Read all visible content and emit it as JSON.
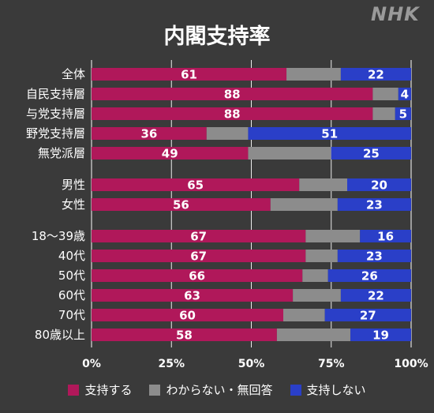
{
  "header": {
    "title": "内閣支持率",
    "logo": "NHK"
  },
  "colors": {
    "support": "#b0185a",
    "unknown": "#8c8c8c",
    "oppose": "#2a3fc8"
  },
  "chart_data": {
    "type": "bar",
    "stacked": true,
    "orientation": "horizontal",
    "title": "内閣支持率",
    "categories": [
      "全体",
      "自民支持層",
      "与党支持層",
      "野党支持層",
      "無党派層",
      "男性",
      "女性",
      "18～39歳",
      "40代",
      "50代",
      "60代",
      "70代",
      "80歳以上"
    ],
    "groups": [
      [
        0,
        1,
        2,
        3,
        4
      ],
      [
        5,
        6
      ],
      [
        7,
        8,
        9,
        10,
        11,
        12
      ]
    ],
    "series": [
      {
        "name": "支持する",
        "values": [
          61,
          88,
          88,
          36,
          49,
          65,
          56,
          67,
          67,
          66,
          63,
          60,
          58
        ]
      },
      {
        "name": "わからない・無回答",
        "values": [
          17,
          8,
          7,
          13,
          26,
          15,
          21,
          17,
          10,
          8,
          15,
          13,
          23
        ]
      },
      {
        "name": "支持しない",
        "values": [
          22,
          4,
          5,
          51,
          25,
          20,
          23,
          16,
          23,
          26,
          22,
          27,
          19
        ]
      }
    ],
    "labeled_series": [
      "支持する",
      "支持しない"
    ],
    "xlim": [
      0,
      100
    ],
    "xticks": [
      "0%",
      "25%",
      "50%",
      "75%",
      "100%"
    ],
    "grid": true,
    "legend_position": "bottom"
  }
}
